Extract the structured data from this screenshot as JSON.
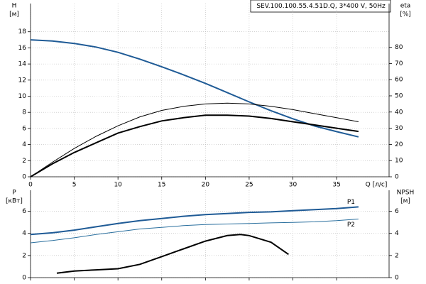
{
  "chart_data": [
    {
      "type": "line",
      "title": "SEV.100.100.55.4.51D.Q, 3*400 V, 50Hz",
      "xlabel": "Q [л/с]",
      "ylabel": [
        "H",
        "[м]"
      ],
      "y2label": [
        "eta",
        "[%]"
      ],
      "xlim": [
        0,
        41
      ],
      "xticks": [
        0,
        5,
        10,
        15,
        20,
        25,
        30,
        35
      ],
      "ylim": [
        0,
        21.5
      ],
      "yticks": [
        0,
        2,
        4,
        6,
        8,
        10,
        12,
        14,
        16,
        18
      ],
      "y2lim": [
        0,
        107
      ],
      "y2ticks": [
        0,
        10,
        20,
        30,
        40,
        50,
        60,
        70,
        80
      ],
      "grid": true,
      "x": [
        0,
        2.5,
        5,
        7.5,
        10,
        12.5,
        15,
        17.5,
        20,
        22.5,
        25,
        27.5,
        30,
        32.5,
        35,
        37.5
      ],
      "series": [
        {
          "color": "#1f5b96",
          "line_width": 2,
          "values": [
            17,
            16.85,
            16.55,
            16.1,
            15.45,
            14.6,
            13.65,
            12.65,
            11.6,
            10.45,
            9.3,
            8.2,
            7.2,
            6.3,
            5.6,
            4.95
          ]
        },
        {
          "color": "#000000",
          "line_width": 1,
          "axis": "y2",
          "values": [
            0,
            9,
            17.5,
            25,
            31.5,
            37,
            41,
            43.5,
            45,
            45.5,
            45,
            43.5,
            41.5,
            39,
            36.5,
            34
          ]
        },
        {
          "color": "#000000",
          "line_width": 2,
          "axis": "y2",
          "values": [
            0,
            8,
            15,
            21,
            27,
            31,
            34.5,
            36.5,
            38,
            38,
            37.5,
            36,
            34,
            32,
            30,
            28
          ]
        }
      ]
    },
    {
      "type": "line",
      "ylabel": [
        "P",
        "[кВт]"
      ],
      "y2label": [
        "NPSH",
        "[м]"
      ],
      "xlim": [
        0,
        41
      ],
      "ylim": [
        0,
        7.9
      ],
      "yticks": [
        0,
        2,
        4,
        6
      ],
      "y2lim": [
        0,
        7.9
      ],
      "y2ticks": [
        0,
        2,
        4,
        6
      ],
      "grid": true,
      "x": [
        0,
        2.5,
        5,
        7.5,
        10,
        12.5,
        15,
        17.5,
        20,
        22.5,
        25,
        27.5,
        30,
        32.5,
        35,
        37.5
      ],
      "series": [
        {
          "name": "P1",
          "color": "#1f5b96",
          "line_width": 2,
          "values": [
            3.9,
            4.05,
            4.3,
            4.6,
            4.9,
            5.15,
            5.35,
            5.55,
            5.7,
            5.8,
            5.9,
            5.95,
            6.05,
            6.15,
            6.25,
            6.4
          ]
        },
        {
          "name": "P2",
          "color": "#2a6f9e",
          "line_width": 1,
          "values": [
            3.15,
            3.35,
            3.6,
            3.9,
            4.15,
            4.4,
            4.55,
            4.7,
            4.8,
            4.85,
            4.9,
            4.95,
            5.0,
            5.05,
            5.15,
            5.3
          ]
        },
        {
          "color": "#000000",
          "line_width": 2,
          "axis": "y2",
          "x": [
            3,
            5,
            7.5,
            10,
            12.5,
            15,
            17.5,
            20,
            22.5,
            24,
            25,
            27.5,
            29.5
          ],
          "values": [
            0.4,
            0.6,
            0.7,
            0.8,
            1.2,
            1.9,
            2.6,
            3.3,
            3.8,
            3.9,
            3.8,
            3.2,
            2.1
          ]
        }
      ]
    }
  ]
}
